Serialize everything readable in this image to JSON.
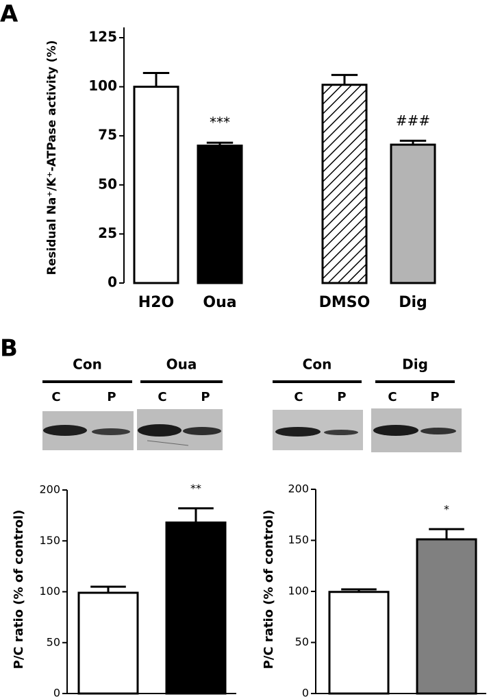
{
  "panel_labels": [
    "A",
    "B"
  ],
  "blots": [
    {
      "groups": [
        {
          "label": "Con",
          "lanes": [
            "C",
            "P"
          ]
        },
        {
          "label": "Oua",
          "lanes": [
            "C",
            "P"
          ]
        }
      ]
    },
    {
      "groups": [
        {
          "label": "Con",
          "lanes": [
            "C",
            "P"
          ]
        },
        {
          "label": "Dig",
          "lanes": [
            "C",
            "P"
          ]
        }
      ]
    }
  ],
  "chart_data": [
    {
      "type": "bar",
      "ylabel": "Residual Na⁺/K⁺-ATPase activity (%)",
      "categories": [
        "H2O",
        "Oua",
        "DMSO",
        "Dig"
      ],
      "values": [
        100,
        70,
        101,
        70.5
      ],
      "errors": [
        7,
        1.5,
        5,
        2
      ],
      "colors": [
        "#ffffff",
        "#000000",
        "#ffffff",
        "#b4b4b4"
      ],
      "hatch": [
        false,
        false,
        true,
        false
      ],
      "value_annotations": [
        null,
        "***",
        null,
        "###"
      ],
      "ylim": [
        0,
        125
      ],
      "yticks": [
        0,
        25,
        50,
        75,
        100,
        125
      ]
    },
    {
      "type": "bar",
      "ylabel": "P/C ratio  (% of control)",
      "categories": [
        null,
        null
      ],
      "values": [
        99,
        168
      ],
      "errors": [
        6,
        14
      ],
      "colors": [
        "#ffffff",
        "#000000"
      ],
      "hatch": [
        false,
        false
      ],
      "value_annotations": [
        null,
        "**"
      ],
      "ylim": [
        0,
        200
      ],
      "yticks": [
        0,
        50,
        100,
        150,
        200
      ]
    },
    {
      "type": "bar",
      "ylabel": "P/C ratio  (% of control)",
      "categories": [
        null,
        null
      ],
      "values": [
        99.5,
        151
      ],
      "errors": [
        2.5,
        10
      ],
      "colors": [
        "#ffffff",
        "#808080"
      ],
      "hatch": [
        false,
        false
      ],
      "value_annotations": [
        null,
        "*"
      ],
      "ylim": [
        0,
        200
      ],
      "yticks": [
        0,
        50,
        100,
        150,
        200
      ]
    }
  ]
}
